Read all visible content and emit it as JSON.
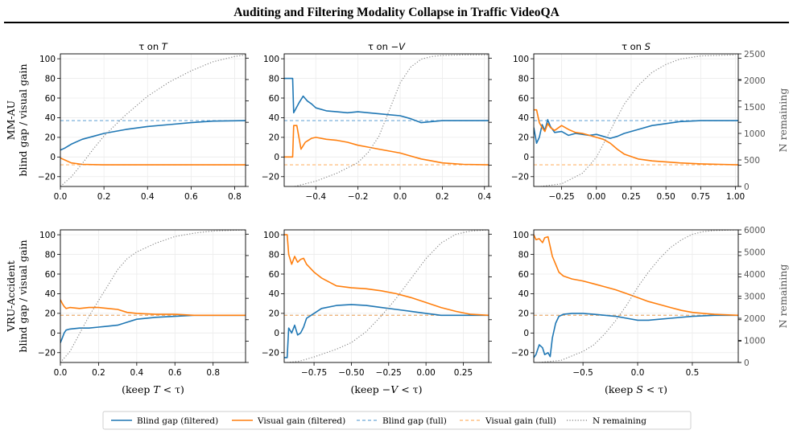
{
  "page_title": "Auditing and Filtering Modality Collapse in Traffic VideoQA",
  "legend": [
    {
      "label": "Blind gap (filtered)",
      "color": "#1f77b4",
      "style": "solid"
    },
    {
      "label": "Visual gain (filtered)",
      "color": "#ff7f0e",
      "style": "solid"
    },
    {
      "label": "Blind gap (full)",
      "color": "#1f77b4",
      "style": "dashed"
    },
    {
      "label": "Visual gain (full)",
      "color": "#ff7f0e",
      "style": "dashed"
    },
    {
      "label": "N remaining",
      "color": "#808080",
      "style": "dotted"
    }
  ],
  "chart_data": [
    {
      "type": "line",
      "row_label": "MM-AU",
      "col_title": "τ on T",
      "ylabel": "MM-AU\nblind gap / visual gain",
      "xlabel": "",
      "xlim": [
        0,
        0.85
      ],
      "ylim": [
        -30,
        105
      ],
      "xticks": [
        0,
        0.2,
        0.4,
        0.6,
        0.8
      ],
      "xtick_labels": [
        "0.0",
        "0.2",
        "0.4",
        "0.6",
        "0.8"
      ],
      "yticks": [
        -20,
        0,
        20,
        40,
        60,
        80,
        100
      ],
      "y2label": "",
      "y2lim": [
        0,
        2500
      ],
      "y2ticks": [],
      "blind_full": 37,
      "visual_full": -8,
      "series": [
        {
          "name": "Blind gap (filtered)",
          "x": [
            0,
            0.02,
            0.05,
            0.1,
            0.15,
            0.2,
            0.3,
            0.4,
            0.5,
            0.6,
            0.7,
            0.85
          ],
          "y": [
            7,
            9,
            13,
            18,
            21,
            24,
            28,
            31,
            33,
            35,
            36.5,
            37
          ]
        },
        {
          "name": "Visual gain (filtered)",
          "x": [
            0,
            0.02,
            0.05,
            0.1,
            0.2,
            0.3,
            0.5,
            0.85
          ],
          "y": [
            -1,
            -3,
            -6,
            -7.5,
            -8,
            -8,
            -8,
            -8
          ]
        },
        {
          "name": "N remaining",
          "x": [
            0,
            0.05,
            0.1,
            0.15,
            0.2,
            0.3,
            0.4,
            0.5,
            0.6,
            0.7,
            0.8,
            0.85
          ],
          "y": [
            0,
            180,
            430,
            700,
            950,
            1350,
            1700,
            1970,
            2180,
            2350,
            2450,
            2480
          ]
        }
      ]
    },
    {
      "type": "line",
      "row_label": "MM-AU",
      "col_title": "τ on −V",
      "ylabel": "",
      "xlabel": "",
      "xlim": [
        -0.55,
        0.42
      ],
      "ylim": [
        -30,
        105
      ],
      "xticks": [
        -0.4,
        -0.2,
        0,
        0.2,
        0.4
      ],
      "xtick_labels": [
        "−0.4",
        "−0.2",
        "0.0",
        "0.2",
        "0.4"
      ],
      "yticks": [
        -20,
        0,
        20,
        40,
        60,
        80,
        100
      ],
      "y2label": "",
      "y2lim": [
        0,
        2500
      ],
      "y2ticks": [],
      "blind_full": 37,
      "visual_full": -8,
      "series": [
        {
          "name": "Blind gap (filtered)",
          "x": [
            -0.55,
            -0.51,
            -0.505,
            -0.48,
            -0.46,
            -0.44,
            -0.42,
            -0.4,
            -0.35,
            -0.3,
            -0.25,
            -0.2,
            -0.15,
            -0.1,
            -0.05,
            0.0,
            0.05,
            0.1,
            0.15,
            0.2,
            0.3,
            0.42
          ],
          "y": [
            80,
            80,
            45,
            55,
            62,
            57,
            54,
            50,
            47,
            46,
            45,
            46,
            45,
            44,
            43,
            42,
            39,
            35,
            36,
            37,
            37,
            37
          ]
        },
        {
          "name": "Visual gain (filtered)",
          "x": [
            -0.55,
            -0.51,
            -0.505,
            -0.49,
            -0.47,
            -0.45,
            -0.42,
            -0.4,
            -0.35,
            -0.3,
            -0.25,
            -0.2,
            -0.15,
            -0.1,
            -0.05,
            0,
            0.05,
            0.1,
            0.15,
            0.2,
            0.3,
            0.42
          ],
          "y": [
            0,
            0,
            32,
            32,
            8,
            15,
            19,
            20,
            18,
            17,
            15,
            12,
            10,
            8,
            6,
            4,
            1,
            -2,
            -4,
            -6,
            -7.5,
            -8
          ]
        },
        {
          "name": "N remaining",
          "x": [
            -0.5,
            -0.4,
            -0.3,
            -0.2,
            -0.15,
            -0.1,
            -0.05,
            0,
            0.05,
            0.1,
            0.15,
            0.2,
            0.3,
            0.42
          ],
          "y": [
            0,
            100,
            250,
            450,
            650,
            950,
            1450,
            1950,
            2250,
            2400,
            2450,
            2470,
            2480,
            2480
          ]
        }
      ]
    },
    {
      "type": "line",
      "row_label": "MM-AU",
      "col_title": "τ on S",
      "ylabel": "",
      "xlabel": "",
      "xlim": [
        -0.45,
        1.02
      ],
      "ylim": [
        -30,
        105
      ],
      "xticks": [
        -0.25,
        0,
        0.25,
        0.5,
        0.75,
        1.0
      ],
      "xtick_labels": [
        "−0.25",
        "0.00",
        "0.25",
        "0.50",
        "0.75",
        "1.00"
      ],
      "yticks": [
        -20,
        0,
        20,
        40,
        60,
        80,
        100
      ],
      "y2label": "N remaining",
      "y2lim": [
        0,
        2500
      ],
      "y2ticks": [
        0,
        500,
        1000,
        1500,
        2000,
        2500
      ],
      "blind_full": 37,
      "visual_full": -8,
      "series": [
        {
          "name": "Blind gap (filtered)",
          "x": [
            -0.45,
            -0.43,
            -0.41,
            -0.39,
            -0.37,
            -0.35,
            -0.33,
            -0.3,
            -0.25,
            -0.2,
            -0.15,
            -0.1,
            -0.05,
            0,
            0.05,
            0.1,
            0.15,
            0.2,
            0.3,
            0.4,
            0.5,
            0.6,
            0.75,
            1.02
          ],
          "y": [
            30,
            14,
            20,
            33,
            27,
            38,
            31,
            25,
            26,
            22,
            24,
            23,
            22,
            23,
            21,
            19,
            21,
            24,
            28,
            32,
            34,
            36,
            37,
            37
          ]
        },
        {
          "name": "Visual gain (filtered)",
          "x": [
            -0.45,
            -0.43,
            -0.41,
            -0.39,
            -0.37,
            -0.35,
            -0.33,
            -0.3,
            -0.25,
            -0.2,
            -0.15,
            -0.1,
            -0.05,
            0,
            0.05,
            0.1,
            0.15,
            0.2,
            0.3,
            0.4,
            0.5,
            0.6,
            0.75,
            1.02
          ],
          "y": [
            48,
            48,
            35,
            30,
            26,
            34,
            30,
            27,
            32,
            28,
            25,
            24,
            22,
            20,
            18,
            14,
            8,
            3,
            -2,
            -4,
            -5,
            -6,
            -7,
            -8
          ]
        },
        {
          "name": "N remaining",
          "x": [
            -0.4,
            -0.25,
            -0.1,
            0,
            0.1,
            0.2,
            0.3,
            0.4,
            0.5,
            0.6,
            0.75,
            1.0
          ],
          "y": [
            0,
            50,
            250,
            550,
            1050,
            1550,
            1900,
            2150,
            2300,
            2400,
            2460,
            2480
          ]
        }
      ]
    },
    {
      "type": "line",
      "row_label": "VRU-Accident",
      "col_title": "",
      "ylabel": "VRU-Accident\nblind gap / visual gain",
      "xlabel": "(keep T < τ)",
      "xlim": [
        0,
        0.97
      ],
      "ylim": [
        -30,
        105
      ],
      "xticks": [
        0,
        0.2,
        0.4,
        0.6,
        0.8
      ],
      "xtick_labels": [
        "0.0",
        "0.2",
        "0.4",
        "0.6",
        "0.8"
      ],
      "yticks": [
        -20,
        0,
        20,
        40,
        60,
        80,
        100
      ],
      "y2label": "",
      "y2lim": [
        0,
        6000
      ],
      "y2ticks": [],
      "blind_full": 18,
      "visual_full": 18,
      "series": [
        {
          "name": "Blind gap (filtered)",
          "x": [
            0,
            0.01,
            0.02,
            0.03,
            0.05,
            0.1,
            0.15,
            0.2,
            0.25,
            0.3,
            0.35,
            0.4,
            0.5,
            0.6,
            0.7,
            0.97
          ],
          "y": [
            -10,
            -5,
            0,
            3,
            4,
            5,
            5,
            6,
            7,
            8,
            11,
            14,
            16,
            17,
            18,
            18
          ]
        },
        {
          "name": "Visual gain (filtered)",
          "x": [
            0,
            0.01,
            0.02,
            0.03,
            0.05,
            0.1,
            0.15,
            0.2,
            0.25,
            0.3,
            0.35,
            0.4,
            0.5,
            0.6,
            0.7,
            0.97
          ],
          "y": [
            34,
            30,
            27,
            25,
            26,
            25,
            26,
            26,
            25,
            24,
            21,
            20,
            19,
            19,
            18,
            18
          ]
        },
        {
          "name": "N remaining",
          "x": [
            0,
            0.05,
            0.1,
            0.15,
            0.2,
            0.25,
            0.3,
            0.35,
            0.4,
            0.5,
            0.6,
            0.7,
            0.8,
            0.97
          ],
          "y": [
            0,
            500,
            1300,
            2100,
            2800,
            3500,
            4200,
            4700,
            5000,
            5400,
            5700,
            5850,
            5950,
            6000
          ]
        }
      ]
    },
    {
      "type": "line",
      "row_label": "VRU-Accident",
      "col_title": "",
      "ylabel": "",
      "xlabel": "(keep −V < τ)",
      "xlim": [
        -0.95,
        0.42
      ],
      "ylim": [
        -30,
        105
      ],
      "xticks": [
        -0.75,
        -0.5,
        -0.25,
        0,
        0.25
      ],
      "xtick_labels": [
        "−0.75",
        "−0.50",
        "−0.25",
        "0.00",
        "0.25"
      ],
      "yticks": [
        -20,
        0,
        20,
        40,
        60,
        80,
        100
      ],
      "y2label": "",
      "y2lim": [
        0,
        6000
      ],
      "y2ticks": [],
      "blind_full": 18,
      "visual_full": 18,
      "series": [
        {
          "name": "Blind gap (filtered)",
          "x": [
            -0.95,
            -0.93,
            -0.92,
            -0.9,
            -0.88,
            -0.86,
            -0.84,
            -0.82,
            -0.8,
            -0.75,
            -0.7,
            -0.6,
            -0.5,
            -0.4,
            -0.3,
            -0.2,
            -0.1,
            0,
            0.1,
            0.2,
            0.42
          ],
          "y": [
            -25,
            -25,
            5,
            0,
            8,
            -2,
            0,
            6,
            15,
            20,
            25,
            28,
            29,
            28,
            26,
            24,
            22,
            20,
            18,
            18,
            18
          ]
        },
        {
          "name": "Visual gain (filtered)",
          "x": [
            -0.95,
            -0.93,
            -0.92,
            -0.9,
            -0.88,
            -0.86,
            -0.84,
            -0.82,
            -0.8,
            -0.75,
            -0.7,
            -0.6,
            -0.5,
            -0.4,
            -0.3,
            -0.2,
            -0.1,
            0,
            0.1,
            0.2,
            0.3,
            0.42
          ],
          "y": [
            100,
            100,
            80,
            70,
            78,
            72,
            75,
            76,
            70,
            62,
            56,
            48,
            46,
            45,
            43,
            40,
            36,
            31,
            26,
            22,
            19,
            18
          ]
        },
        {
          "name": "N remaining",
          "x": [
            -0.93,
            -0.85,
            -0.75,
            -0.6,
            -0.5,
            -0.4,
            -0.3,
            -0.2,
            -0.1,
            0,
            0.1,
            0.2,
            0.3,
            0.42
          ],
          "y": [
            0,
            50,
            250,
            600,
            900,
            1400,
            2100,
            2900,
            3800,
            4700,
            5400,
            5800,
            5950,
            6000
          ]
        }
      ]
    },
    {
      "type": "line",
      "row_label": "VRU-Accident",
      "col_title": "",
      "ylabel": "",
      "xlabel": "(keep S < τ)",
      "xlim": [
        -0.95,
        0.92
      ],
      "ylim": [
        -30,
        105
      ],
      "xticks": [
        -0.5,
        0,
        0.5
      ],
      "xtick_labels": [
        "−0.5",
        "0.0",
        "0.5"
      ],
      "yticks": [
        -20,
        0,
        20,
        40,
        60,
        80,
        100
      ],
      "y2label": "N remaining",
      "y2lim": [
        0,
        6000
      ],
      "y2ticks": [
        0,
        1000,
        2000,
        3000,
        4000,
        5000,
        6000
      ],
      "blind_full": 18,
      "visual_full": 18,
      "series": [
        {
          "name": "Blind gap (filtered)",
          "x": [
            -0.95,
            -0.93,
            -0.9,
            -0.87,
            -0.85,
            -0.82,
            -0.8,
            -0.78,
            -0.75,
            -0.72,
            -0.68,
            -0.6,
            -0.5,
            -0.4,
            -0.3,
            -0.2,
            -0.1,
            0,
            0.1,
            0.2,
            0.3,
            0.5,
            0.7,
            0.92
          ],
          "y": [
            -25,
            -22,
            -12,
            -15,
            -22,
            -20,
            -24,
            -5,
            10,
            17,
            19,
            20,
            20,
            19,
            18,
            17,
            15,
            13,
            13,
            14,
            15,
            17,
            18,
            18
          ]
        },
        {
          "name": "Visual gain (filtered)",
          "x": [
            -0.95,
            -0.93,
            -0.9,
            -0.87,
            -0.85,
            -0.82,
            -0.8,
            -0.78,
            -0.75,
            -0.72,
            -0.68,
            -0.6,
            -0.5,
            -0.4,
            -0.3,
            -0.2,
            -0.1,
            0,
            0.1,
            0.2,
            0.3,
            0.4,
            0.5,
            0.6,
            0.7,
            0.92
          ],
          "y": [
            100,
            95,
            96,
            92,
            97,
            98,
            88,
            78,
            70,
            62,
            58,
            55,
            53,
            50,
            47,
            44,
            40,
            36,
            32,
            29,
            26,
            23,
            21,
            20,
            19,
            18
          ]
        },
        {
          "name": "N remaining",
          "x": [
            -0.9,
            -0.7,
            -0.5,
            -0.4,
            -0.3,
            -0.2,
            -0.1,
            0,
            0.1,
            0.2,
            0.3,
            0.4,
            0.5,
            0.6,
            0.7,
            0.92
          ],
          "y": [
            0,
            100,
            500,
            800,
            1300,
            1900,
            2600,
            3400,
            4100,
            4700,
            5200,
            5550,
            5800,
            5920,
            5970,
            6000
          ]
        }
      ]
    }
  ]
}
